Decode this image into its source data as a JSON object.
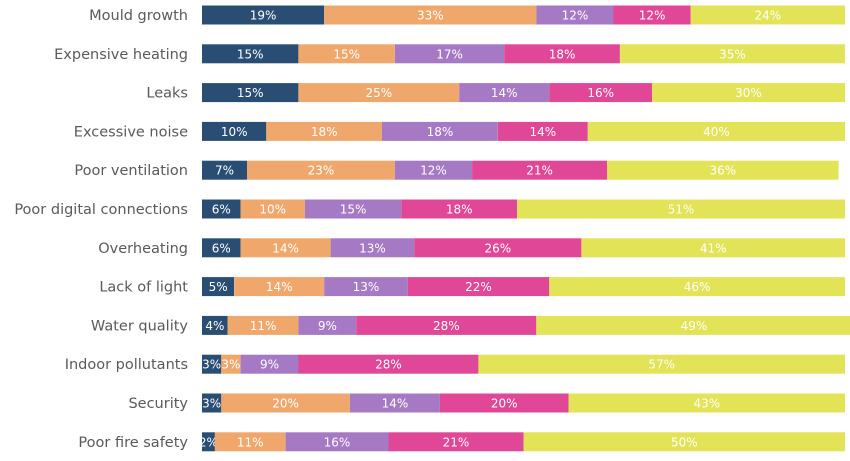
{
  "chart_data": {
    "type": "bar",
    "orientation": "horizontal",
    "stacked": true,
    "title": "",
    "xlabel": "",
    "ylabel": "",
    "xlim": [
      0,
      100
    ],
    "grid": false,
    "legend": "none",
    "categories": [
      "Mould growth",
      "Expensive heating",
      "Leaks",
      "Excessive noise",
      "Poor ventilation",
      "Poor digital connections",
      "Overheating",
      "Lack of light",
      "Water quality",
      "Indoor pollutants",
      "Security",
      "Poor fire safety"
    ],
    "series": [
      {
        "color": "#2a4e73",
        "values": [
          19,
          15,
          15,
          10,
          7,
          6,
          6,
          5,
          4,
          3,
          3,
          2
        ]
      },
      {
        "color": "#f0a76c",
        "values": [
          33,
          15,
          25,
          18,
          23,
          10,
          14,
          14,
          11,
          3,
          20,
          11
        ]
      },
      {
        "color": "#a679c4",
        "values": [
          12,
          17,
          14,
          18,
          12,
          15,
          13,
          13,
          9,
          9,
          14,
          16
        ]
      },
      {
        "color": "#e04796",
        "values": [
          12,
          18,
          16,
          14,
          21,
          18,
          26,
          22,
          28,
          28,
          20,
          21
        ]
      },
      {
        "color": "#e2e356",
        "values": [
          24,
          35,
          30,
          40,
          36,
          51,
          41,
          46,
          49,
          57,
          43,
          50
        ]
      }
    ]
  }
}
